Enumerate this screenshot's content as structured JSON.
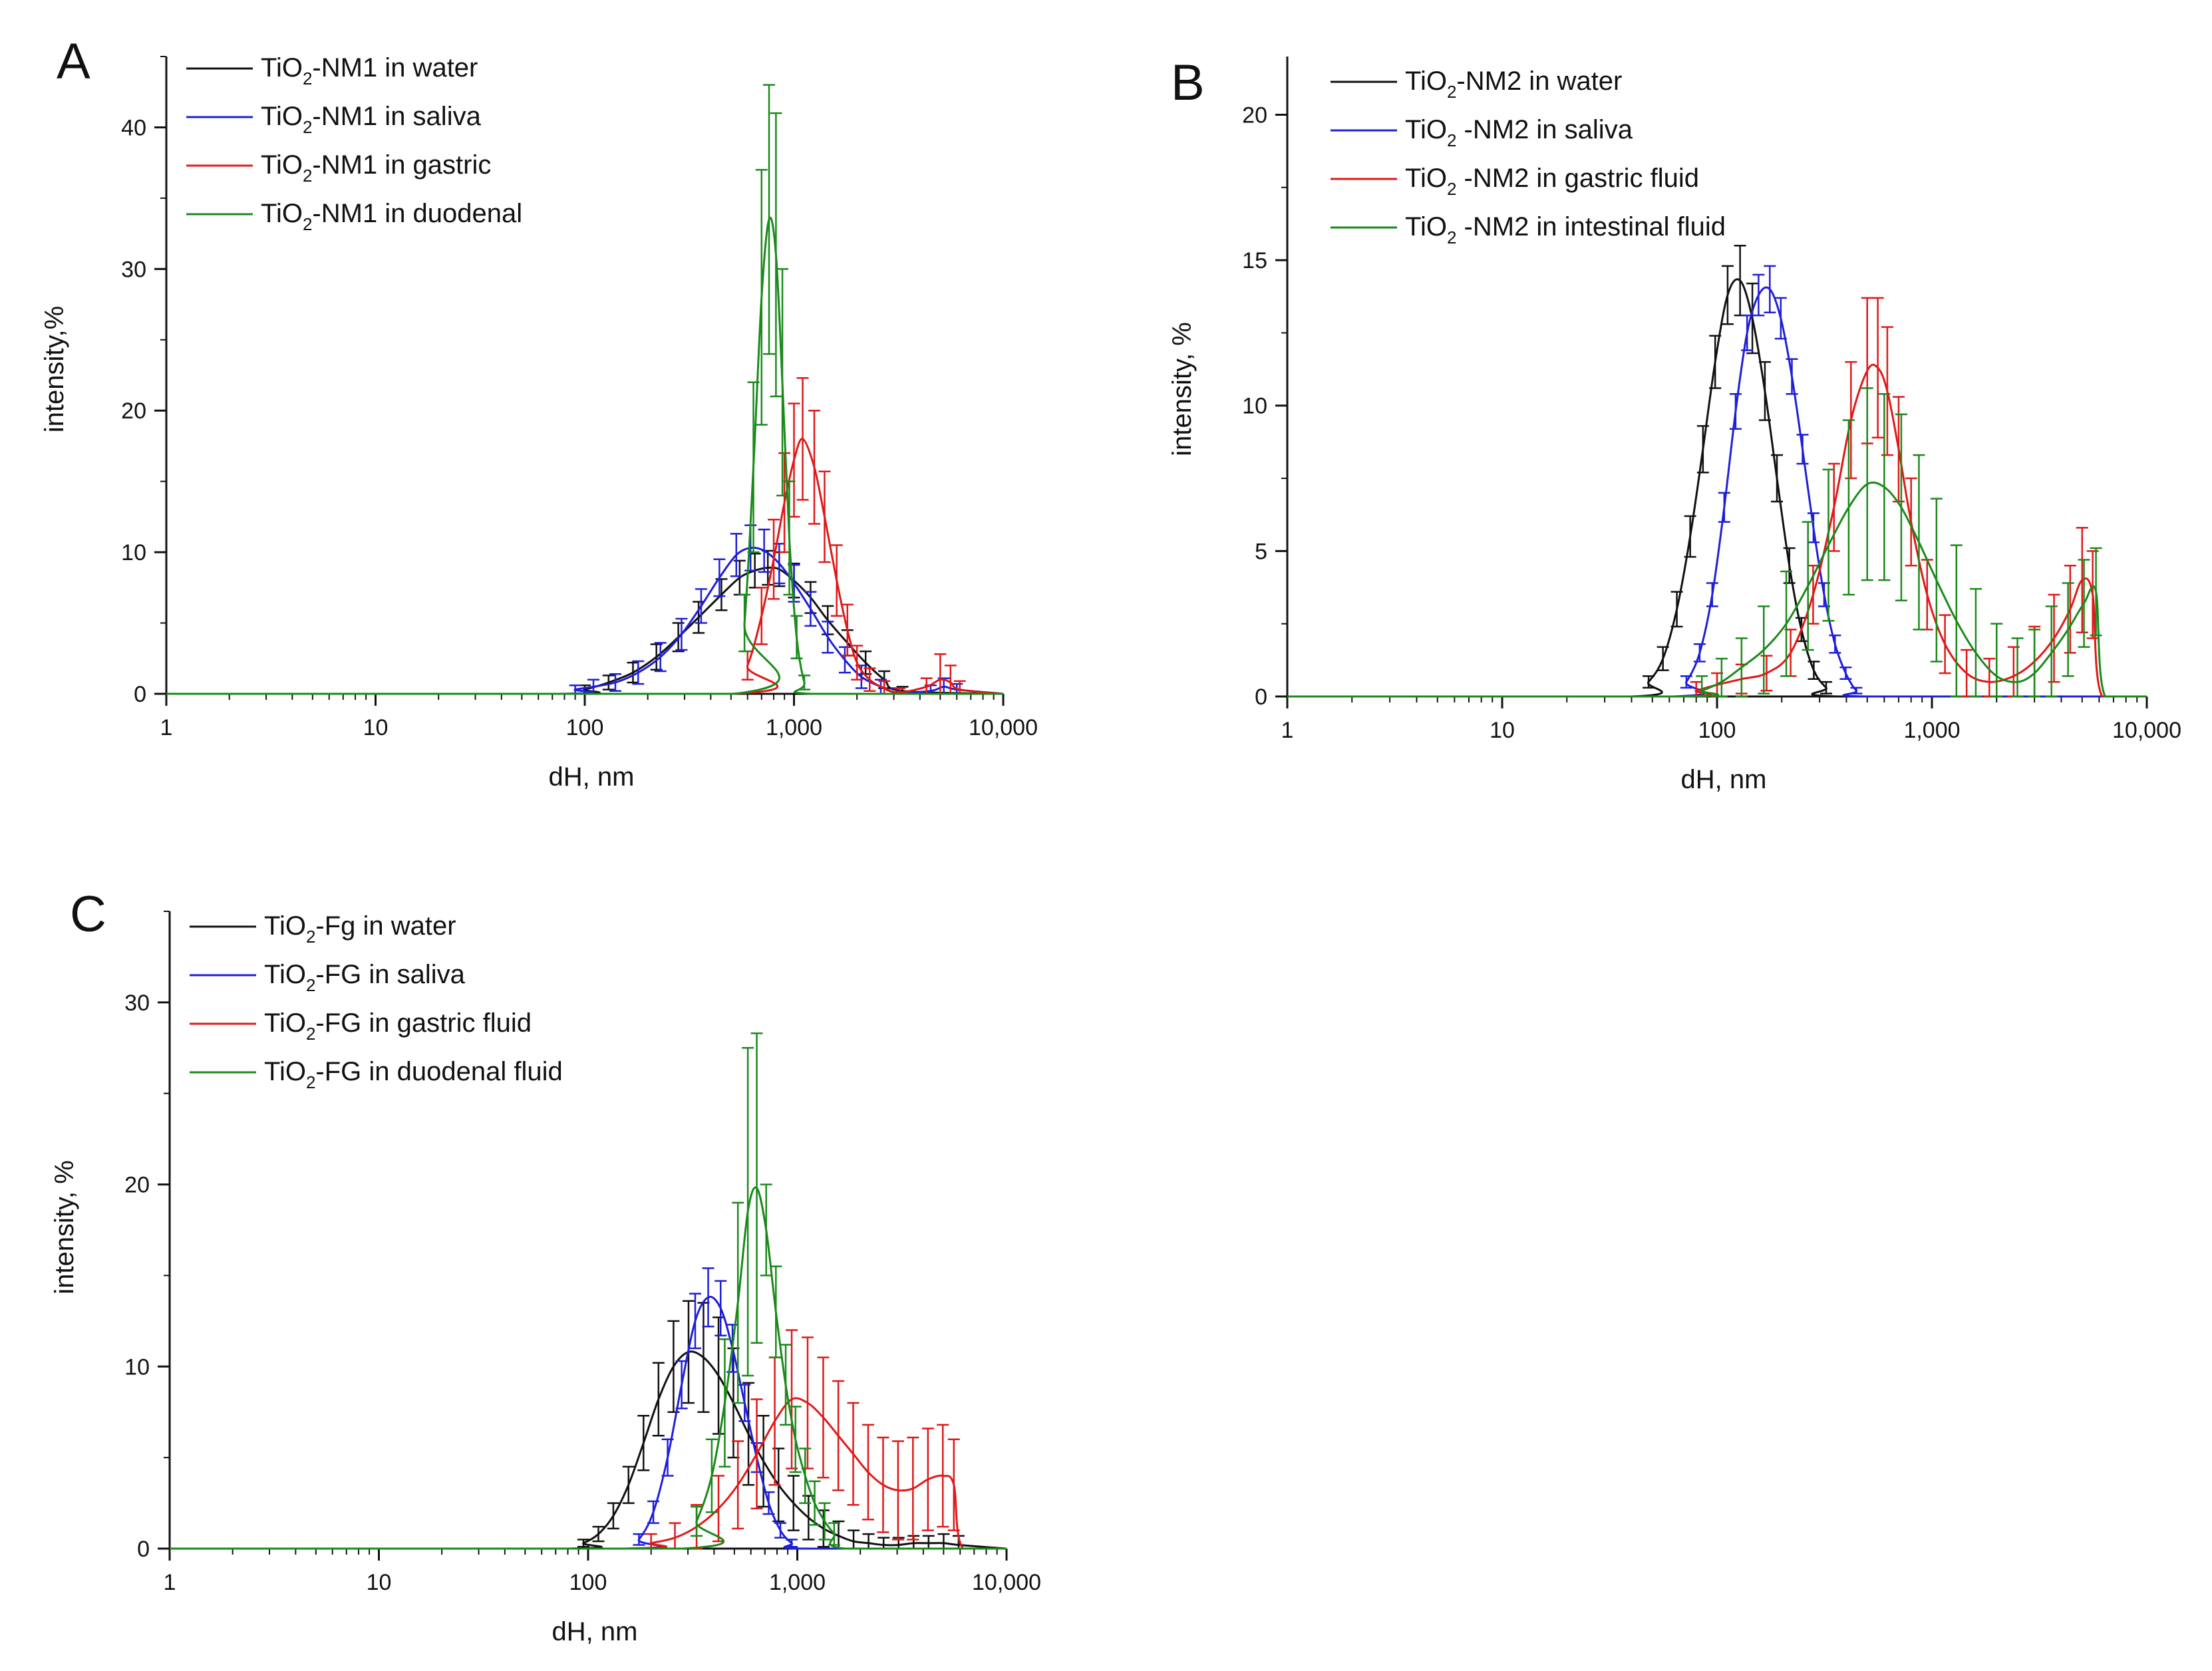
{
  "chart_data": [
    {
      "panel": "A",
      "type": "line",
      "xscale": "log",
      "xlabel": "dH, nm",
      "ylabel": "intensity,%",
      "xlim": [
        1,
        10000
      ],
      "ylim": [
        0,
        45
      ],
      "xticks": [
        1,
        10,
        100,
        1000,
        10000
      ],
      "xtick_labels": [
        "1",
        "10",
        "100",
        "1,000",
        "10,000"
      ],
      "yticks": [
        0,
        10,
        20,
        30,
        40
      ],
      "ytick_labels": [
        "0",
        "10",
        "20",
        "30",
        "40"
      ],
      "legend_position": "top-left",
      "series": [
        {
          "name": "TiO2-NM1 in water",
          "legend_prefix": "TiO",
          "legend_sub": "2",
          "legend_suffix": "-NM1 in water",
          "color": "#111111",
          "x": [
            1,
            80,
            100,
            130,
            170,
            220,
            280,
            350,
            450,
            550,
            650,
            750,
            850,
            1000,
            1200,
            1450,
            1800,
            2200,
            2700,
            3300,
            10000
          ],
          "y": [
            0,
            0,
            0.3,
            0.8,
            1.5,
            2.6,
            4.0,
            5.4,
            7.0,
            8.2,
            8.7,
            8.9,
            8.8,
            8.0,
            6.8,
            5.2,
            3.6,
            2.2,
            1.0,
            0.2,
            0
          ],
          "err": [
            0,
            0,
            0.3,
            0.5,
            0.7,
            0.9,
            1.0,
            1.1,
            1.1,
            1.2,
            1.2,
            1.2,
            1.2,
            1.2,
            1.1,
            1.0,
            0.9,
            0.8,
            0.6,
            0.3,
            0
          ]
        },
        {
          "name": "TiO2-NM1 in saliva",
          "legend_prefix": "TiO",
          "legend_sub": "2",
          "legend_suffix": "-NM1 in saliva",
          "color": "#1f1fd9",
          "x": [
            1,
            75,
            90,
            110,
            140,
            180,
            230,
            290,
            360,
            440,
            530,
            620,
            720,
            850,
            1000,
            1200,
            1450,
            1750,
            2100,
            2600,
            3100,
            4500,
            5200,
            6000,
            10000
          ],
          "y": [
            0,
            0,
            0.3,
            0.5,
            0.8,
            1.5,
            2.6,
            4.2,
            6.2,
            8.2,
            9.8,
            10.3,
            10.1,
            9.2,
            7.8,
            6.0,
            4.0,
            2.4,
            1.2,
            0.5,
            0.1,
            0.2,
            0.5,
            0.3,
            0
          ],
          "err": [
            0,
            0,
            0.3,
            0.5,
            0.6,
            0.8,
            1.0,
            1.1,
            1.2,
            1.3,
            1.5,
            1.6,
            1.5,
            1.4,
            1.3,
            1.2,
            1.1,
            0.9,
            0.8,
            0.5,
            0.3,
            0.4,
            0.6,
            0.4,
            0
          ]
        },
        {
          "name": "TiO2-NM1 in gastric",
          "legend_prefix": "TiO",
          "legend_sub": "2",
          "legend_suffix": "-NM1 in gastric",
          "color": "#e01818",
          "x": [
            1,
            500,
            600,
            700,
            800,
            900,
            1000,
            1100,
            1250,
            1400,
            1600,
            1800,
            2000,
            2300,
            2700,
            3200,
            4300,
            5000,
            5600,
            6200,
            10000
          ],
          "y": [
            0,
            0,
            2.0,
            5.5,
            9.5,
            13.5,
            16.5,
            18.0,
            16.0,
            12.5,
            8.0,
            4.5,
            2.2,
            1.0,
            0.4,
            0.1,
            0.5,
            1.0,
            0.8,
            0.3,
            0
          ],
          "err": [
            0,
            0,
            1.0,
            2.0,
            2.8,
            3.5,
            4.0,
            4.3,
            4.0,
            3.2,
            2.5,
            1.8,
            1.2,
            0.8,
            0.5,
            0.3,
            0.6,
            1.8,
            1.2,
            0.6,
            0
          ]
        },
        {
          "name": "TiO2-NM1 in duodenal",
          "legend_prefix": "TiO",
          "legend_sub": "2",
          "legend_suffix": "-NM1 in duodenal",
          "color": "#1a8a1a",
          "x": [
            1,
            520,
            580,
            640,
            700,
            760,
            820,
            880,
            950,
            1030,
            1120,
            1200,
            10000
          ],
          "y": [
            0,
            0,
            5.0,
            16.0,
            28.0,
            33.5,
            31.0,
            22.0,
            11.0,
            4.0,
            0.8,
            0,
            0
          ],
          "err": [
            0,
            0,
            2.0,
            6.0,
            9.0,
            9.5,
            10.0,
            8.0,
            4.0,
            1.5,
            0.5,
            0,
            0
          ]
        }
      ]
    },
    {
      "panel": "B",
      "type": "line",
      "xscale": "log",
      "xlabel": "dH, nm",
      "ylabel": "intensity, %",
      "xlim": [
        1,
        10000
      ],
      "ylim": [
        0,
        22
      ],
      "xticks": [
        1,
        10,
        100,
        1000,
        10000
      ],
      "xtick_labels": [
        "1",
        "10",
        "100",
        "1,000",
        "10,000"
      ],
      "yticks": [
        0,
        5,
        10,
        15,
        20
      ],
      "ytick_labels": [
        "0",
        "5",
        "10",
        "15",
        "20"
      ],
      "legend_position": "top-left",
      "series": [
        {
          "name": "TiO2-NM2 in water",
          "legend_prefix": "TiO",
          "legend_sub": "2",
          "legend_suffix": "-NM2 in water",
          "color": "#111111",
          "x": [
            1,
            40,
            48,
            56,
            65,
            75,
            86,
            98,
            112,
            128,
            146,
            167,
            190,
            217,
            247,
            282,
            322,
            367,
            10000
          ],
          "y": [
            0,
            0,
            0.5,
            1.3,
            3.0,
            5.5,
            8.5,
            11.5,
            13.8,
            14.3,
            13.0,
            10.5,
            7.5,
            4.5,
            2.3,
            0.9,
            0.3,
            0,
            0
          ],
          "err": [
            0,
            0,
            0.2,
            0.4,
            0.6,
            0.7,
            0.8,
            0.9,
            1.0,
            1.2,
            1.2,
            1.0,
            0.8,
            0.6,
            0.4,
            0.3,
            0.2,
            0,
            0
          ]
        },
        {
          "name": "TiO2 -NM2 in saliva",
          "legend_prefix": "TiO",
          "legend_sub": "2",
          "legend_suffix": " -NM2 in saliva",
          "color": "#1f1fd9",
          "x": [
            1,
            62,
            72,
            83,
            95,
            108,
            122,
            138,
            156,
            176,
            198,
            223,
            250,
            281,
            315,
            354,
            397,
            445,
            500,
            10000
          ],
          "y": [
            0,
            0,
            0.5,
            1.5,
            3.5,
            6.5,
            9.8,
            12.5,
            13.8,
            14.0,
            13.0,
            11.0,
            8.5,
            5.8,
            3.5,
            1.8,
            0.8,
            0.2,
            0,
            0
          ],
          "err": [
            0,
            0,
            0.2,
            0.3,
            0.4,
            0.5,
            0.6,
            0.6,
            0.7,
            0.8,
            0.7,
            0.6,
            0.5,
            0.5,
            0.4,
            0.3,
            0.2,
            0.1,
            0,
            0
          ]
        },
        {
          "name": "TiO2 -NM2 in gastric fluid",
          "legend_prefix": "TiO",
          "legend_sub": "2",
          "legend_suffix": " -NM2 in gastric fluid",
          "color": "#e01818",
          "x": [
            1,
            65,
            80,
            100,
            130,
            170,
            220,
            280,
            350,
            420,
            500,
            560,
            620,
            700,
            800,
            950,
            1150,
            1450,
            1850,
            2400,
            3000,
            3700,
            4400,
            5000,
            5600,
            6200,
            10000
          ],
          "y": [
            0,
            0,
            0.2,
            0.4,
            0.6,
            0.8,
            1.5,
            3.5,
            6.5,
            9.5,
            11.2,
            11.3,
            10.5,
            8.5,
            6.0,
            3.5,
            1.8,
            0.8,
            0.5,
            0.7,
            1.2,
            2.0,
            3.0,
            4.0,
            3.5,
            0,
            0
          ],
          "err": [
            0,
            0,
            0.3,
            0.4,
            0.5,
            0.6,
            0.8,
            1.0,
            1.5,
            2.0,
            2.5,
            2.4,
            2.2,
            1.8,
            1.5,
            1.2,
            1.0,
            0.8,
            0.8,
            1.0,
            1.2,
            1.5,
            1.5,
            1.8,
            1.5,
            0,
            0
          ]
        },
        {
          "name": "TiO2 -NM2 in intestinal fluid",
          "legend_prefix": "TiO",
          "legend_sub": "2",
          "legend_suffix": " -NM2 in intestinal fluid",
          "color": "#1a8a1a",
          "x": [
            1,
            70,
            85,
            105,
            130,
            165,
            210,
            265,
            330,
            410,
            500,
            600,
            720,
            870,
            1050,
            1300,
            1600,
            2000,
            2500,
            3000,
            3600,
            4300,
            5100,
            5800,
            6400,
            10000
          ],
          "y": [
            0,
            0,
            0.2,
            0.5,
            1.0,
            1.6,
            2.5,
            3.8,
            5.2,
            6.5,
            7.3,
            7.2,
            6.5,
            5.3,
            4.0,
            2.6,
            1.5,
            0.7,
            0.5,
            0.8,
            1.5,
            2.3,
            3.2,
            3.6,
            0,
            0
          ],
          "err": [
            0,
            0,
            0.5,
            0.8,
            1.0,
            1.5,
            1.8,
            2.2,
            2.6,
            3.0,
            3.3,
            3.2,
            3.2,
            3.0,
            2.8,
            2.6,
            2.2,
            1.8,
            1.5,
            1.5,
            1.6,
            1.6,
            1.5,
            1.5,
            0,
            0
          ]
        }
      ]
    },
    {
      "panel": "C",
      "type": "line",
      "xscale": "log",
      "xlabel": "dH, nm",
      "ylabel": "intensity, %",
      "xlim": [
        1,
        10000
      ],
      "ylim": [
        0,
        35
      ],
      "xticks": [
        1,
        10,
        100,
        1000,
        10000
      ],
      "xtick_labels": [
        "1",
        "10",
        "100",
        "1,000",
        "10,000"
      ],
      "yticks": [
        0,
        10,
        20,
        30
      ],
      "ytick_labels": [
        "0",
        "10",
        "20",
        "30"
      ],
      "legend_position": "top-left",
      "series": [
        {
          "name": "TiO2-Fg in water",
          "legend_prefix": "TiO",
          "legend_sub": "2",
          "legend_suffix": "-Fg in water",
          "color": "#111111",
          "x": [
            1,
            80,
            95,
            112,
            132,
            156,
            184,
            217,
            256,
            302,
            356,
            420,
            495,
            584,
            689,
            813,
            959,
            1131,
            1334,
            1574,
            1857,
            2190,
            2584,
            3048,
            3595,
            4241,
            5003,
            5900,
            10000
          ],
          "y": [
            0,
            0,
            0.3,
            0.8,
            1.8,
            3.5,
            5.8,
            8.2,
            10.0,
            10.8,
            10.5,
            9.5,
            8.0,
            6.3,
            4.8,
            3.5,
            2.5,
            1.7,
            1.1,
            0.7,
            0.4,
            0.3,
            0.2,
            0.2,
            0.3,
            0.3,
            0.3,
            0.2,
            0
          ],
          "err": [
            0,
            0,
            0.2,
            0.4,
            0.7,
            1.0,
            1.5,
            2.0,
            2.5,
            2.8,
            3.0,
            3.2,
            3.0,
            2.8,
            2.5,
            2.0,
            1.5,
            1.2,
            1.0,
            0.8,
            0.6,
            0.5,
            0.4,
            0.4,
            0.4,
            0.4,
            0.5,
            0.5,
            0
          ]
        },
        {
          "name": "TiO2-FG in saliva",
          "legend_prefix": "TiO",
          "legend_sub": "2",
          "legend_suffix": "-FG in saliva",
          "color": "#1f1fd9",
          "x": [
            1,
            150,
            175,
            205,
            240,
            280,
            325,
            375,
            430,
            490,
            560,
            640,
            730,
            830,
            940,
            1060,
            10000
          ],
          "y": [
            0,
            0,
            0.5,
            2.0,
            5.0,
            9.0,
            12.5,
            13.8,
            13.2,
            11.0,
            8.0,
            5.0,
            2.5,
            1.0,
            0.3,
            0,
            0
          ],
          "err": [
            0,
            0,
            0.3,
            0.6,
            1.0,
            1.3,
            1.5,
            1.6,
            1.5,
            1.3,
            1.0,
            0.8,
            0.6,
            0.4,
            0.2,
            0,
            0
          ]
        },
        {
          "name": "TiO2-FG in gastric fluid",
          "legend_prefix": "TiO",
          "legend_sub": "2",
          "legend_suffix": "-FG in gastric fluid",
          "color": "#e01818",
          "x": [
            1,
            150,
            200,
            260,
            330,
            420,
            520,
            640,
            780,
            940,
            1120,
            1330,
            1570,
            1850,
            2180,
            2570,
            3030,
            3570,
            4210,
            4960,
            5600,
            6200,
            10000
          ],
          "y": [
            0,
            0,
            0.3,
            0.6,
            1.2,
            2.2,
            3.5,
            5.2,
            7.0,
            8.2,
            8.0,
            7.2,
            6.2,
            5.2,
            4.2,
            3.5,
            3.2,
            3.3,
            3.8,
            4.0,
            3.5,
            0,
            0
          ],
          "err": [
            0,
            0,
            0.5,
            0.8,
            1.2,
            1.8,
            2.4,
            3.0,
            3.5,
            3.8,
            3.6,
            3.3,
            3.0,
            2.8,
            2.6,
            2.6,
            2.7,
            2.8,
            2.8,
            2.8,
            2.5,
            0,
            0
          ]
        },
        {
          "name": "TiO2-FG in duodenal fluid",
          "legend_prefix": "TiO",
          "legend_sub": "2",
          "legend_suffix": "-FG in duodenal fluid",
          "color": "#1a8a1a",
          "x": [
            1,
            280,
            330,
            390,
            450,
            520,
            580,
            640,
            710,
            790,
            880,
            980,
            1090,
            1210,
            1350,
            1500,
            1700,
            10000
          ],
          "y": [
            0,
            0,
            1.5,
            4.0,
            8.0,
            13.5,
            18.5,
            19.8,
            17.5,
            13.0,
            9.0,
            6.0,
            4.0,
            2.5,
            1.5,
            0.8,
            0,
            0
          ],
          "err": [
            0,
            0,
            0.8,
            2.0,
            3.5,
            5.5,
            9.0,
            8.5,
            2.5,
            2.5,
            2.2,
            1.8,
            1.5,
            1.2,
            1.0,
            0.6,
            0,
            0
          ]
        }
      ]
    }
  ]
}
